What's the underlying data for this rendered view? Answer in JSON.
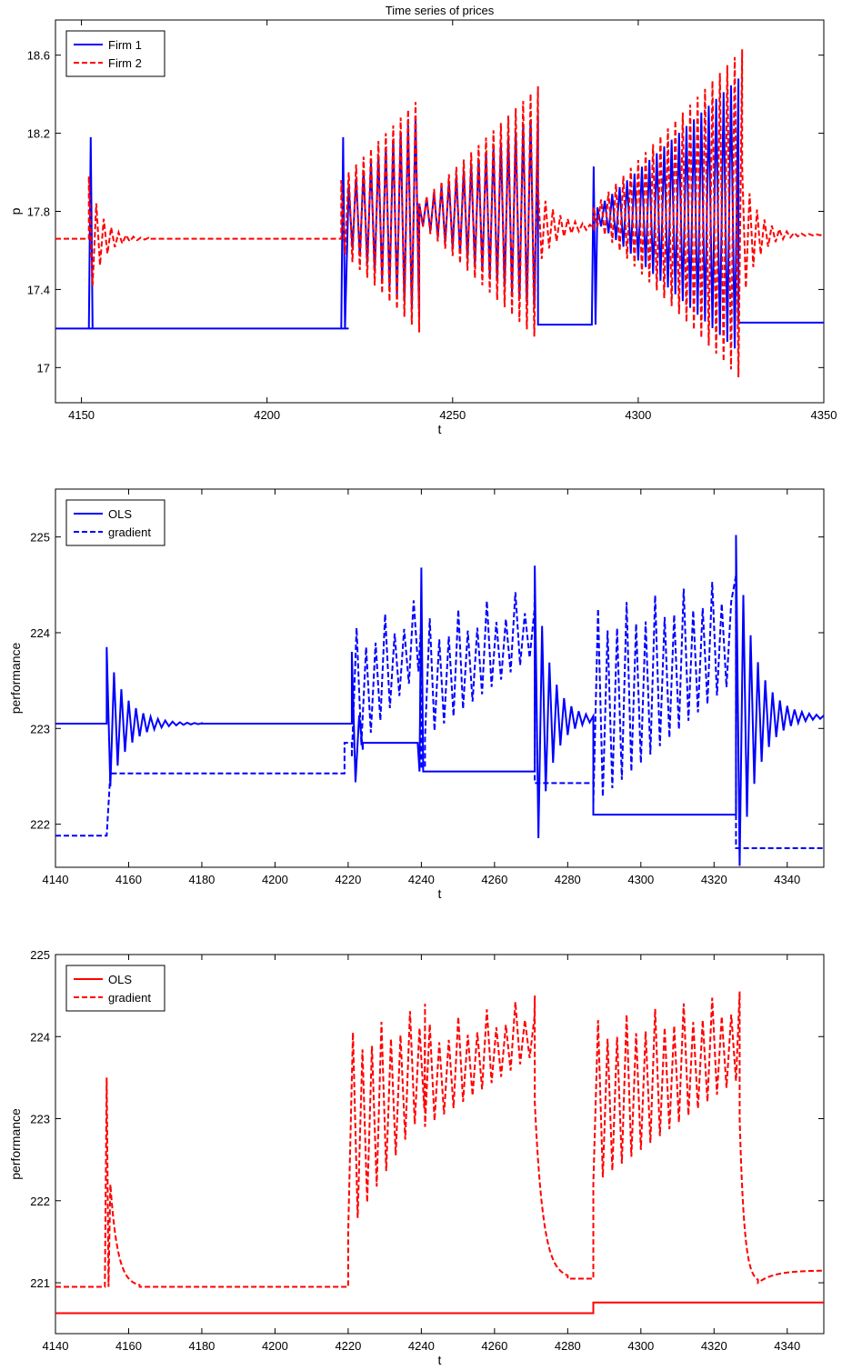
{
  "chart_data": [
    {
      "type": "line",
      "title": "Time series of prices",
      "xlabel": "t",
      "ylabel": "p",
      "xlim": [
        4143,
        4350
      ],
      "ylim": [
        16.82,
        18.78
      ],
      "xticks": [
        4150,
        4200,
        4250,
        4300,
        4350
      ],
      "yticks": [
        17,
        17.4,
        17.8,
        18.2,
        18.6
      ],
      "ytick_labels": [
        "17",
        "17.4",
        "17.8",
        "18.2",
        "18.6"
      ],
      "legend_position": "top-left",
      "series": [
        {
          "name": "Firm 1",
          "color": "#0000ff",
          "style": "solid",
          "segments": [
            {
              "kind": "flat",
              "from": 4143,
              "to": 4155,
              "base": 17.2
            },
            {
              "kind": "spike",
              "at": 4152.5,
              "peak": 18.18,
              "base": 17.2
            },
            {
              "kind": "flat",
              "from": 4155,
              "to": 4222,
              "base": 17.2
            },
            {
              "kind": "spike",
              "at": 4220.5,
              "peak": 18.18,
              "base": 17.2
            },
            {
              "kind": "osc",
              "from": 4222,
              "to": 4241,
              "center": 17.78,
              "amp0": 0.15,
              "amp1": 0.52,
              "period": 1
            },
            {
              "kind": "osc",
              "from": 4241,
              "to": 4273,
              "center": 17.79,
              "amp0": 0.05,
              "amp1": 0.5,
              "period": 1
            },
            {
              "kind": "flat",
              "from": 4273,
              "to": 4287,
              "base": 17.22
            },
            {
              "kind": "spike",
              "at": 4288,
              "peak": 18.03,
              "base": 17.22
            },
            {
              "kind": "osc",
              "from": 4289,
              "to": 4327,
              "center": 17.78,
              "amp0": 0.04,
              "amp1": 0.7,
              "period": 1
            },
            {
              "kind": "flat",
              "from": 4327,
              "to": 4350,
              "base": 17.23
            }
          ]
        },
        {
          "name": "Firm 2",
          "color": "#ff0000",
          "style": "dashed",
          "segments": [
            {
              "kind": "flat",
              "from": 4143,
              "to": 4152,
              "base": 17.66
            },
            {
              "kind": "damped",
              "from": 4152,
              "to": 4168,
              "center": 17.66,
              "amp": 0.32,
              "period": 1,
              "decay": 3.5
            },
            {
              "kind": "flat",
              "from": 4168,
              "to": 4220,
              "base": 17.66
            },
            {
              "kind": "osc",
              "from": 4220,
              "to": 4241,
              "center": 17.78,
              "amp0": 0.18,
              "amp1": 0.6,
              "period": 1
            },
            {
              "kind": "osc",
              "from": 4241,
              "to": 4273,
              "center": 17.79,
              "amp0": 0.05,
              "amp1": 0.65,
              "period": 1
            },
            {
              "kind": "damped",
              "from": 4273,
              "to": 4288,
              "center": 17.72,
              "amp": 0.2,
              "period": 1,
              "decay": 5
            },
            {
              "kind": "osc",
              "from": 4288,
              "to": 4328,
              "center": 17.78,
              "amp0": 0.04,
              "amp1": 0.85,
              "period": 1
            },
            {
              "kind": "damped",
              "from": 4328,
              "to": 4350,
              "center": 17.68,
              "amp": 0.35,
              "period": 1,
              "decay": 4
            }
          ]
        }
      ]
    },
    {
      "type": "line",
      "title": "",
      "xlabel": "t",
      "ylabel": "performance",
      "xlim": [
        4140,
        4350
      ],
      "ylim": [
        221.55,
        225.5
      ],
      "xticks": [
        4140,
        4160,
        4180,
        4200,
        4220,
        4240,
        4260,
        4280,
        4300,
        4320,
        4340
      ],
      "yticks": [
        222,
        223,
        224,
        225
      ],
      "ytick_labels": [
        "222",
        "223",
        "224",
        "225"
      ],
      "legend_position": "top-left",
      "series": [
        {
          "name": "OLS",
          "color": "#0000ff",
          "style": "solid",
          "segments": [
            {
              "kind": "flat",
              "from": 4140,
              "to": 4154,
              "base": 223.05
            },
            {
              "kind": "damped",
              "from": 4154,
              "to": 4180,
              "center": 223.05,
              "amp": 0.8,
              "period": 1,
              "decay": 5
            },
            {
              "kind": "flat",
              "from": 4180,
              "to": 4221,
              "base": 223.05
            },
            {
              "kind": "damped",
              "from": 4221,
              "to": 4224,
              "center": 222.9,
              "amp": 0.9,
              "period": 1,
              "decay": 1.5
            },
            {
              "kind": "flat",
              "from": 4224,
              "to": 4239,
              "base": 222.85
            },
            {
              "kind": "spike",
              "at": 4240,
              "peak": 224.68,
              "base": 222.55
            },
            {
              "kind": "flat",
              "from": 4241,
              "to": 4271,
              "base": 222.55
            },
            {
              "kind": "damped",
              "from": 4271,
              "to": 4287,
              "center": 223.1,
              "amp": 1.6,
              "period": 1,
              "decay": 4
            },
            {
              "kind": "flat",
              "from": 4287,
              "to": 4326,
              "base": 222.1
            },
            {
              "kind": "damped",
              "from": 4326,
              "to": 4350,
              "center": 223.12,
              "amp": 1.9,
              "period": 1,
              "decay": 5
            }
          ]
        },
        {
          "name": "gradient",
          "color": "#0000ff",
          "style": "dashed",
          "segments": [
            {
              "kind": "flat",
              "from": 4140,
              "to": 4154,
              "base": 221.88
            },
            {
              "kind": "flat",
              "from": 4155,
              "to": 4219,
              "base": 222.53
            },
            {
              "kind": "flat",
              "from": 4219,
              "to": 4221,
              "base": 222.85
            },
            {
              "kind": "sawtooth",
              "from": 4221,
              "to": 4240,
              "low": 222.7,
              "high": 224.4,
              "period": 2.6
            },
            {
              "kind": "flat",
              "from": 4240,
              "to": 4241,
              "base": 222.6
            },
            {
              "kind": "sawtooth",
              "from": 4241,
              "to": 4271,
              "low": 222.9,
              "high": 224.5,
              "period": 2.6
            },
            {
              "kind": "flat",
              "from": 4271,
              "to": 4287,
              "base": 222.43
            },
            {
              "kind": "sawtooth",
              "from": 4287,
              "to": 4326,
              "low": 222.2,
              "high": 224.6,
              "period": 2.6
            },
            {
              "kind": "flat",
              "from": 4326,
              "to": 4350,
              "base": 221.75
            }
          ]
        }
      ]
    },
    {
      "type": "line",
      "title": "",
      "xlabel": "t",
      "ylabel": "performance",
      "xlim": [
        4140,
        4350
      ],
      "ylim": [
        220.38,
        225
      ],
      "xticks": [
        4140,
        4160,
        4180,
        4200,
        4220,
        4240,
        4260,
        4280,
        4300,
        4320,
        4340
      ],
      "yticks": [
        221,
        222,
        223,
        224,
        225
      ],
      "ytick_labels": [
        "221",
        "222",
        "223",
        "224",
        "225"
      ],
      "legend_position": "top-left",
      "series": [
        {
          "name": "OLS",
          "color": "#ff0000",
          "style": "solid",
          "segments": [
            {
              "kind": "flat",
              "from": 4140,
              "to": 4287,
              "base": 220.63
            },
            {
              "kind": "flat",
              "from": 4287,
              "to": 4350,
              "base": 220.76
            }
          ]
        },
        {
          "name": "gradient",
          "color": "#ff0000",
          "style": "dashed",
          "segments": [
            {
              "kind": "flat",
              "from": 4140,
              "to": 4153,
              "base": 220.95
            },
            {
              "kind": "spike",
              "at": 4154,
              "peak": 223.5,
              "base": 220.95
            },
            {
              "kind": "decay",
              "from": 4155,
              "to": 4163,
              "start": 222.2,
              "end": 220.95
            },
            {
              "kind": "flat",
              "from": 4163,
              "to": 4220,
              "base": 220.95
            },
            {
              "kind": "sawtooth",
              "from": 4220,
              "to": 4241,
              "low": 221.6,
              "high": 224.4,
              "period": 2.6
            },
            {
              "kind": "sawtooth",
              "from": 4241,
              "to": 4271,
              "low": 222.9,
              "high": 224.5,
              "period": 2.6
            },
            {
              "kind": "decay",
              "from": 4271,
              "to": 4280,
              "start": 223.2,
              "end": 221.05
            },
            {
              "kind": "flat",
              "from": 4280,
              "to": 4287,
              "base": 221.05
            },
            {
              "kind": "sawtooth",
              "from": 4287,
              "to": 4327,
              "low": 222.2,
              "high": 224.55,
              "period": 2.6
            },
            {
              "kind": "decay",
              "from": 4327,
              "to": 4332,
              "start": 223.0,
              "end": 221.0
            },
            {
              "kind": "decay",
              "from": 4332,
              "to": 4350,
              "start": 221.0,
              "end": 221.15
            }
          ]
        }
      ]
    }
  ]
}
